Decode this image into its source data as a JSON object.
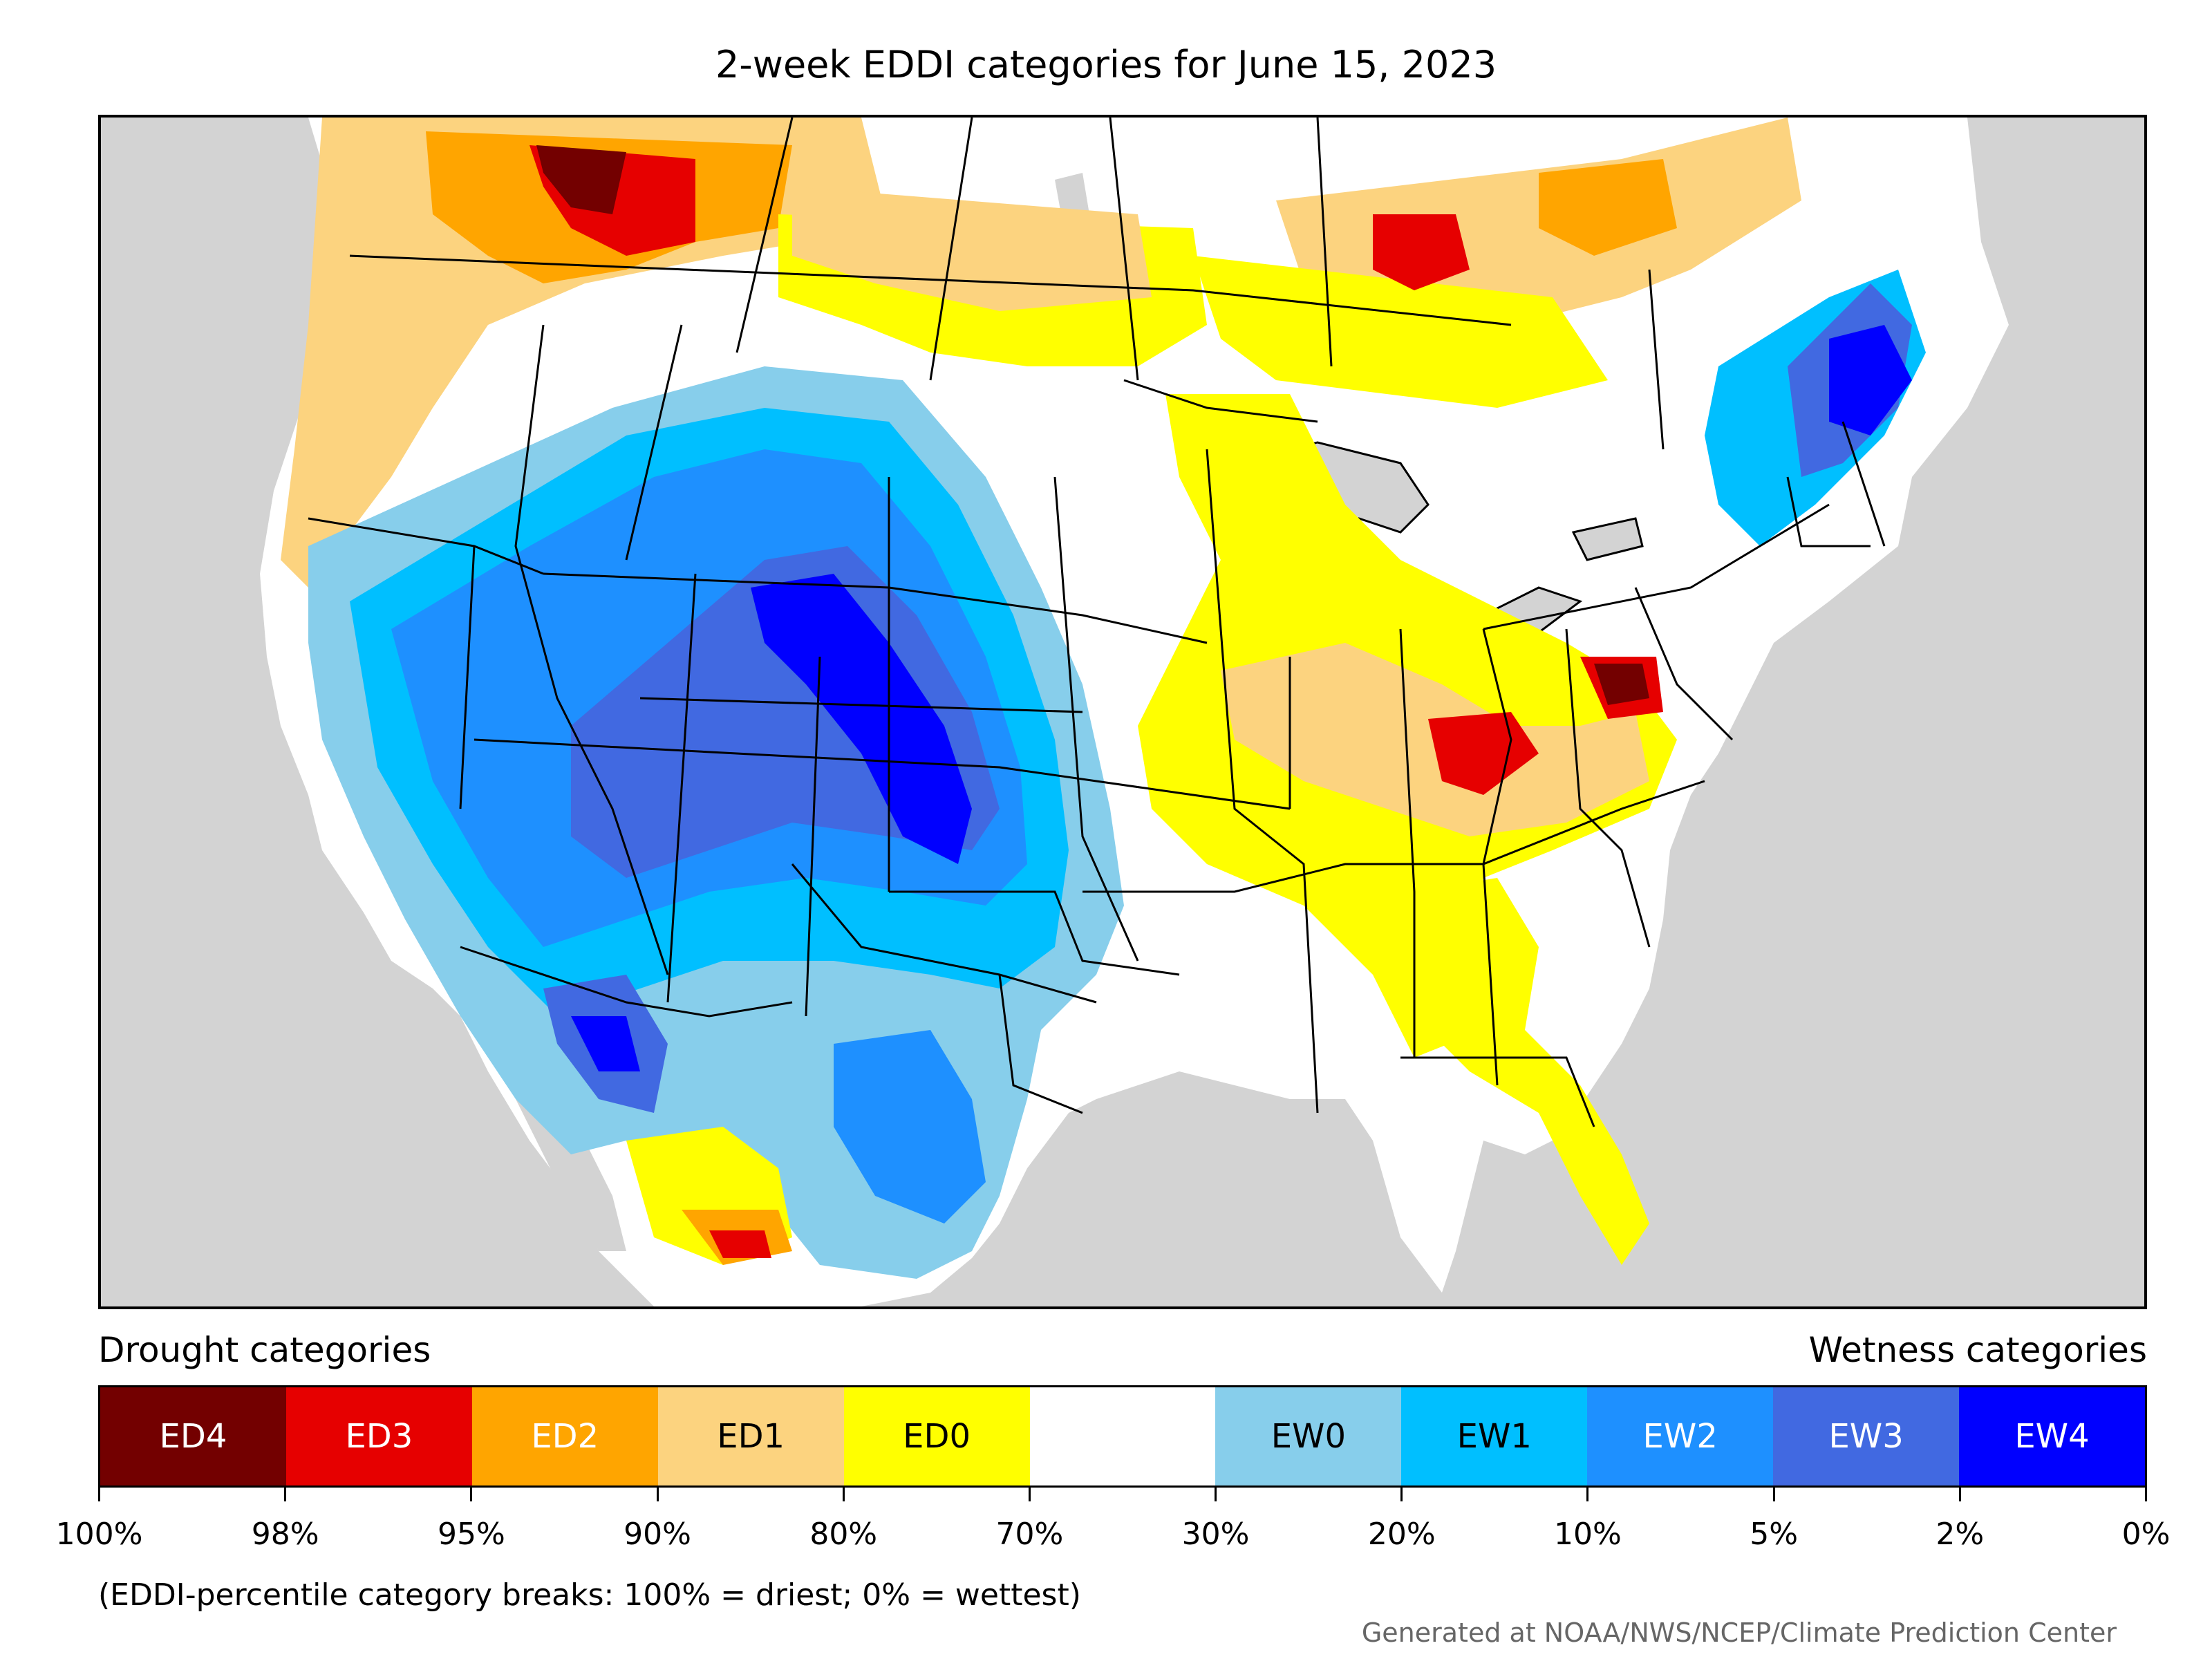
{
  "title": "2-week EDDI categories for June 15, 2023",
  "legend": {
    "drought_label": "Drought categories",
    "wetness_label": "Wetness categories",
    "categories": [
      {
        "label": "ED4",
        "color": "#730000",
        "text_color": "#ffffff"
      },
      {
        "label": "ED3",
        "color": "#e60000",
        "text_color": "#ffffff"
      },
      {
        "label": "ED2",
        "color": "#ffa500",
        "text_color": "#ffffff"
      },
      {
        "label": "ED1",
        "color": "#fcd37f",
        "text_color": "#000000"
      },
      {
        "label": "ED0",
        "color": "#ffff00",
        "text_color": "#000000"
      },
      {
        "label": "",
        "color": "#ffffff",
        "text_color": "#000000"
      },
      {
        "label": "EW0",
        "color": "#87ceeb",
        "text_color": "#000000"
      },
      {
        "label": "EW1",
        "color": "#00bfff",
        "text_color": "#000000"
      },
      {
        "label": "EW2",
        "color": "#1e90ff",
        "text_color": "#ffffff"
      },
      {
        "label": "EW3",
        "color": "#4169e1",
        "text_color": "#ffffff"
      },
      {
        "label": "EW4",
        "color": "#0000ff",
        "text_color": "#ffffff"
      }
    ],
    "tick_labels": [
      "100%",
      "98%",
      "95%",
      "90%",
      "80%",
      "70%",
      "30%",
      "20%",
      "10%",
      "5%",
      "2%",
      "0%"
    ]
  },
  "note": "(EDDI-percentile category breaks: 100% = driest; 0% = wettest)",
  "credit": "Generated at NOAA/NWS/NCEP/Climate Prediction Center",
  "map": {
    "background_color": "#d3d3d3",
    "land_color": "#ffffff",
    "border_color": "#000000"
  }
}
